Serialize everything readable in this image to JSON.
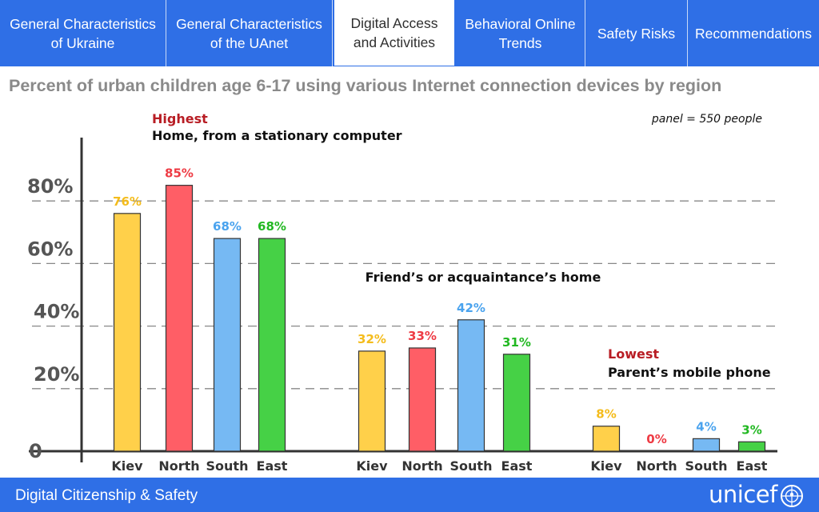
{
  "nav": {
    "tabs": [
      {
        "label": "General Characteristics of Ukraine",
        "active": false
      },
      {
        "label": "General Characteristics of the UAnet",
        "active": false
      },
      {
        "label": "Digital Access and Activities",
        "active": true
      },
      {
        "label": "Behavioral Online Trends",
        "active": false
      },
      {
        "label": "Safety Risks",
        "active": false
      },
      {
        "label": "Recommendations",
        "active": false
      }
    ]
  },
  "page": {
    "title": "Percent of urban children age 6-17 using various Internet connection devices by region"
  },
  "footer": {
    "text": "Digital Citizenship & Safety",
    "logo": "unicef"
  },
  "chart_data": {
    "type": "bar",
    "note": "panel = 550 people",
    "ylim": [
      0,
      100
    ],
    "y_ticks": [
      {
        "value": 0,
        "label": "0"
      },
      {
        "value": 20,
        "label": "20%"
      },
      {
        "value": 40,
        "label": "40%"
      },
      {
        "value": 60,
        "label": "60%"
      },
      {
        "value": 80,
        "label": "80%"
      }
    ],
    "grid": "dashed horizontal at 20, 40, 60, 80",
    "colors": {
      "Kiev": "#ffd04a",
      "North": "#ff5e66",
      "South": "#76b9f3",
      "East": "#46d146",
      "highlight_red": "#b81d24",
      "grid": "#888888",
      "axis": "#333333"
    },
    "groups": [
      {
        "tag": "Highest",
        "name": "Home, from a stationary computer",
        "categories": [
          "Kiev",
          "North",
          "South",
          "East"
        ],
        "values": [
          76,
          85,
          68,
          68
        ],
        "labels": [
          "76%",
          "85%",
          "68%",
          "68%"
        ]
      },
      {
        "tag": "",
        "name": "Friend’s or acquaintance’s home",
        "categories": [
          "Kiev",
          "North",
          "South",
          "East"
        ],
        "values": [
          32,
          33,
          42,
          31
        ],
        "labels": [
          "32%",
          "33%",
          "42%",
          "31%"
        ]
      },
      {
        "tag": "Lowest",
        "name": "Parent’s mobile phone",
        "categories": [
          "Kiev",
          "North",
          "South",
          "East"
        ],
        "values": [
          8,
          0,
          4,
          3
        ],
        "labels": [
          "8%",
          "0%",
          "4%",
          "3%"
        ]
      }
    ]
  }
}
